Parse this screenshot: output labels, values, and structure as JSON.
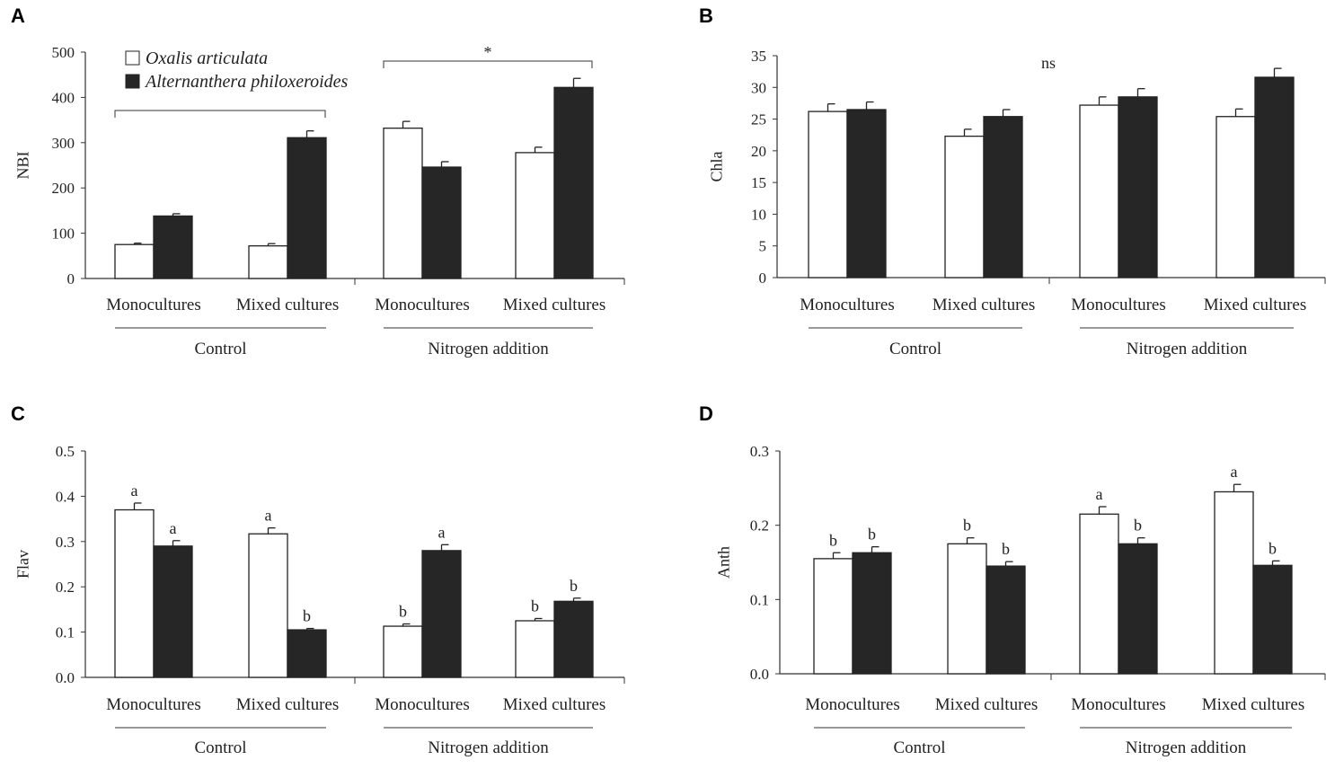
{
  "chart_data": [
    {
      "type": "bar",
      "panel": "A",
      "ylabel": "NBI",
      "ylim": [
        0,
        500
      ],
      "yticks": [
        "0",
        "100",
        "200",
        "300",
        "400",
        "500"
      ],
      "categories": [
        "Monocultures",
        "Mixed cultures",
        "Monocultures",
        "Mixed cultures"
      ],
      "groups": [
        "Control",
        "Nitrogen addition"
      ],
      "series": [
        {
          "name": "Oxalis articulata",
          "color": "#ffffff",
          "values": [
            75,
            72,
            332,
            278
          ],
          "errors": [
            3,
            5,
            15,
            12
          ]
        },
        {
          "name": "Alternanthera philoxeroides",
          "color": "#262626",
          "values": [
            138,
            311,
            246,
            422
          ],
          "errors": [
            5,
            15,
            12,
            20
          ]
        }
      ],
      "annotations": [
        "*"
      ]
    },
    {
      "type": "bar",
      "panel": "B",
      "ylabel": "Chla",
      "ylim": [
        0,
        35
      ],
      "yticks": [
        "0",
        "5",
        "10",
        "15",
        "20",
        "25",
        "30",
        "35"
      ],
      "categories": [
        "Monocultures",
        "Mixed cultures",
        "Monocultures",
        "Mixed cultures"
      ],
      "groups": [
        "Control",
        "Nitrogen addition"
      ],
      "series": [
        {
          "name": "Oxalis articulata",
          "values": [
            26.2,
            22.3,
            27.2,
            25.4
          ],
          "errors": [
            1.2,
            1.1,
            1.3,
            1.2
          ]
        },
        {
          "name": "Alternanthera philoxeroides",
          "values": [
            26.5,
            25.4,
            28.5,
            31.6
          ],
          "errors": [
            1.2,
            1.1,
            1.3,
            1.4
          ]
        }
      ],
      "annotations": [
        "ns"
      ]
    },
    {
      "type": "bar",
      "panel": "C",
      "ylabel": "Flav",
      "ylim": [
        0,
        0.5
      ],
      "yticks": [
        "0.0",
        "0.1",
        "0.2",
        "0.3",
        "0.4",
        "0.5"
      ],
      "categories": [
        "Monocultures",
        "Mixed cultures",
        "Monocultures",
        "Mixed cultures"
      ],
      "groups": [
        "Control",
        "Nitrogen addition"
      ],
      "series": [
        {
          "name": "Oxalis articulata",
          "values": [
            0.37,
            0.317,
            0.113,
            0.125
          ],
          "errors": [
            0.015,
            0.013,
            0.005,
            0.005
          ],
          "letters": [
            "a",
            "a",
            "b",
            "b"
          ]
        },
        {
          "name": "Alternanthera philoxeroides",
          "values": [
            0.29,
            0.105,
            0.28,
            0.168
          ],
          "errors": [
            0.012,
            0.003,
            0.013,
            0.007
          ],
          "letters": [
            "a",
            "b",
            "a",
            "b"
          ]
        }
      ]
    },
    {
      "type": "bar",
      "panel": "D",
      "ylabel": "Anth",
      "ylim": [
        0,
        0.3
      ],
      "yticks": [
        "0.0",
        "0.1",
        "0.2",
        "0.3"
      ],
      "categories": [
        "Monocultures",
        "Mixed cultures",
        "Monocultures",
        "Mixed cultures"
      ],
      "groups": [
        "Control",
        "Nitrogen addition"
      ],
      "series": [
        {
          "name": "Oxalis articulata",
          "values": [
            0.155,
            0.175,
            0.215,
            0.245
          ],
          "errors": [
            0.008,
            0.008,
            0.01,
            0.01
          ],
          "letters": [
            "b",
            "b",
            "a",
            "a"
          ]
        },
        {
          "name": "Alternanthera philoxeroides",
          "values": [
            0.163,
            0.145,
            0.175,
            0.146
          ],
          "errors": [
            0.008,
            0.006,
            0.008,
            0.006
          ],
          "letters": [
            "b",
            "b",
            "b",
            "b"
          ]
        }
      ]
    }
  ]
}
